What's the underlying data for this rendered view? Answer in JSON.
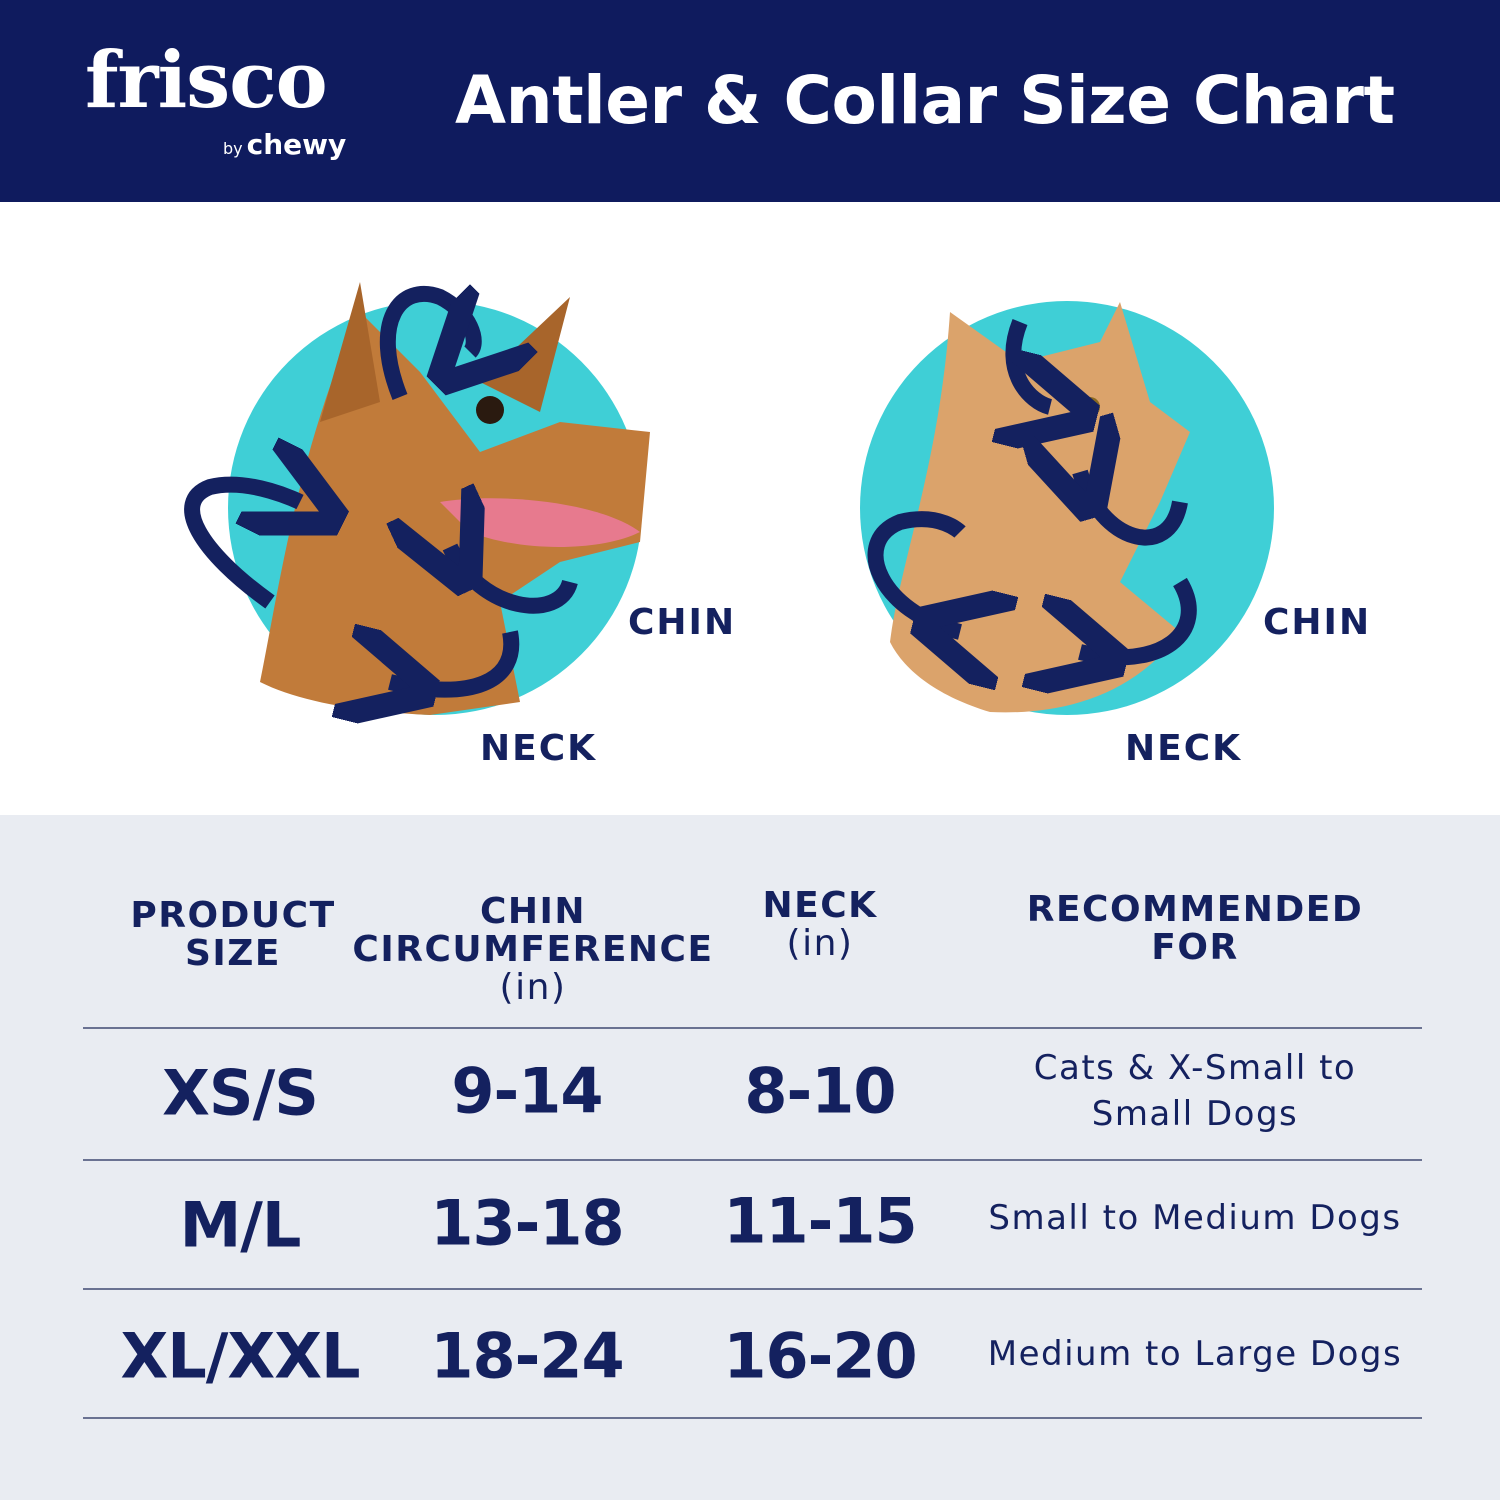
{
  "brand": {
    "name": "frisco",
    "sub_prefix": "by",
    "sub_name": "chewy"
  },
  "header": {
    "title": "Antler & Collar Size Chart"
  },
  "illustration": {
    "dog": {
      "chin_label": "CHIN",
      "neck_label": "NECK"
    },
    "cat": {
      "chin_label": "CHIN",
      "neck_label": "NECK"
    },
    "colors": {
      "circle": "#3fcfd6",
      "arrow": "#14215f"
    }
  },
  "table": {
    "headers": [
      {
        "line1": "PRODUCT",
        "line2": "SIZE",
        "unit": ""
      },
      {
        "line1": "CHIN",
        "line2": "CIRCUMFERENCE",
        "unit": "(in)"
      },
      {
        "line1": "NECK",
        "line2": "",
        "unit": "(in)"
      },
      {
        "line1": "RECOMMENDED",
        "line2": "FOR",
        "unit": ""
      }
    ],
    "rows": [
      {
        "size": "XS/S",
        "chin": "9-14",
        "neck": "8-10",
        "recommended": "Cats & X-Small to Small Dogs"
      },
      {
        "size": "M/L",
        "chin": "13-18",
        "neck": "11-15",
        "recommended": "Small to Medium Dogs"
      },
      {
        "size": "XL/XXL",
        "chin": "18-24",
        "neck": "16-20",
        "recommended": "Medium to Large Dogs"
      }
    ]
  },
  "colors": {
    "navy": "#0f1b5e",
    "table_bg": "#e9ecf2",
    "text": "#14215f"
  }
}
